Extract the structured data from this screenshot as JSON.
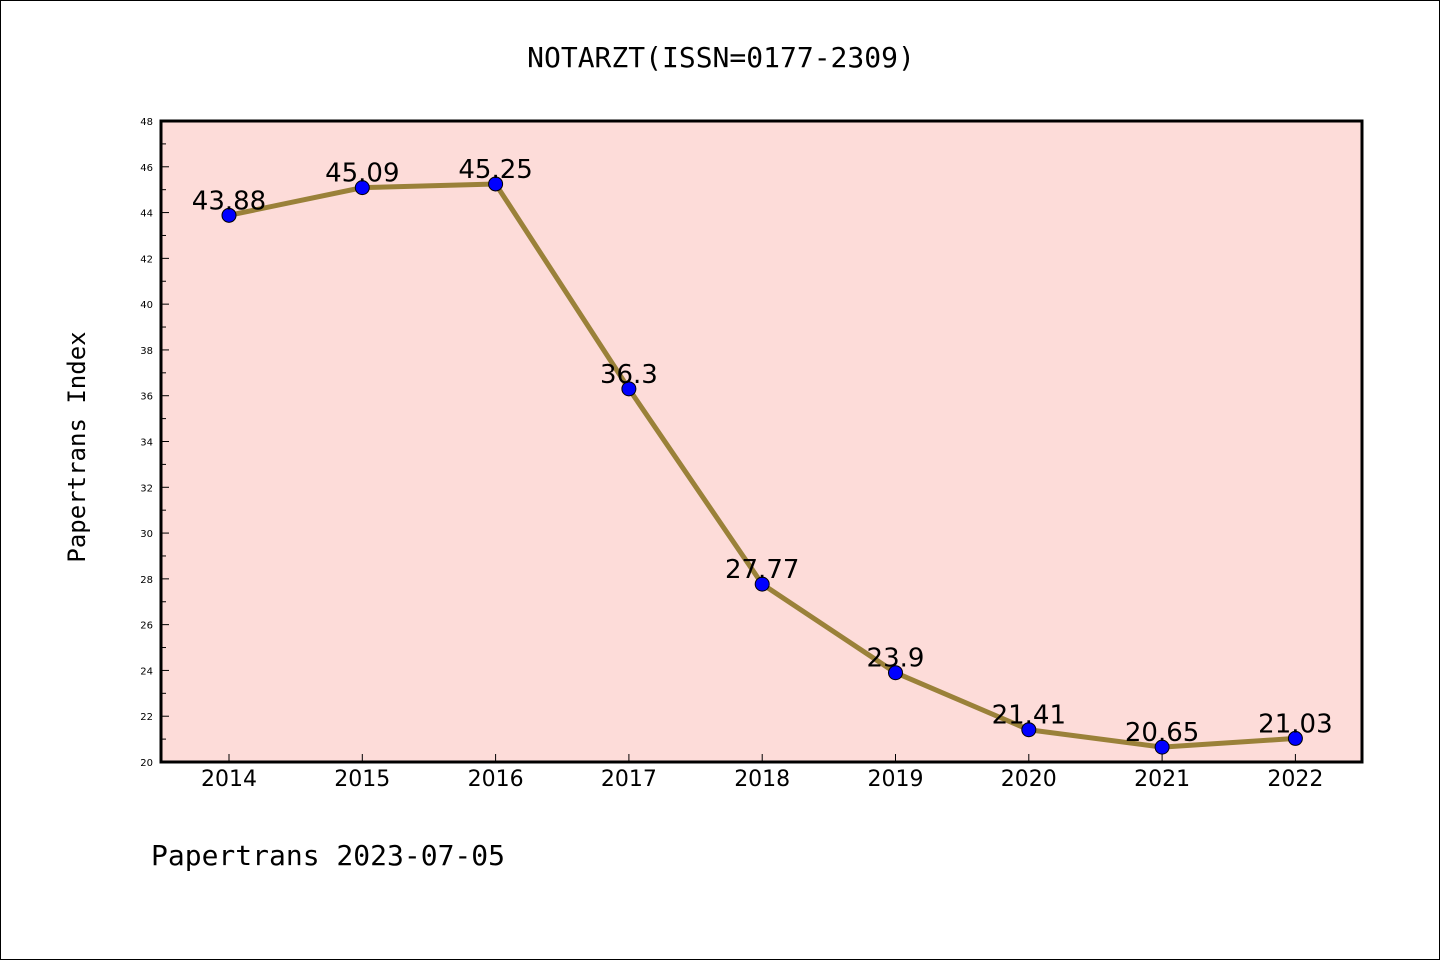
{
  "chart_data": {
    "type": "line",
    "title": "NOTARZT(ISSN=0177-2309)",
    "xlabel": "",
    "ylabel": "Papertrans Index",
    "categories": [
      "2014",
      "2015",
      "2016",
      "2017",
      "2018",
      "2019",
      "2020",
      "2021",
      "2022"
    ],
    "series": [
      {
        "values": [
          43.88,
          45.09,
          45.25,
          36.3,
          27.77,
          23.9,
          21.41,
          20.65,
          21.03
        ],
        "data_labels": [
          "43.88",
          "45.09",
          "45.25",
          "36.3",
          "27.77",
          "23.9",
          "21.41",
          "20.65",
          "21.03"
        ]
      }
    ],
    "ylim": [
      20,
      48
    ],
    "yticks": [
      "20",
      "22",
      "24",
      "26",
      "28",
      "30",
      "32",
      "34",
      "36",
      "38",
      "40",
      "42",
      "44",
      "46",
      "48"
    ],
    "grid": false,
    "legend": "none",
    "colors": {
      "plot_background": "#fddcd9",
      "line": "#9a8139",
      "marker_fill": "#0000ff",
      "marker_edge": "#000000"
    }
  },
  "footer": {
    "source_label": "Papertrans 2023-07-05"
  }
}
